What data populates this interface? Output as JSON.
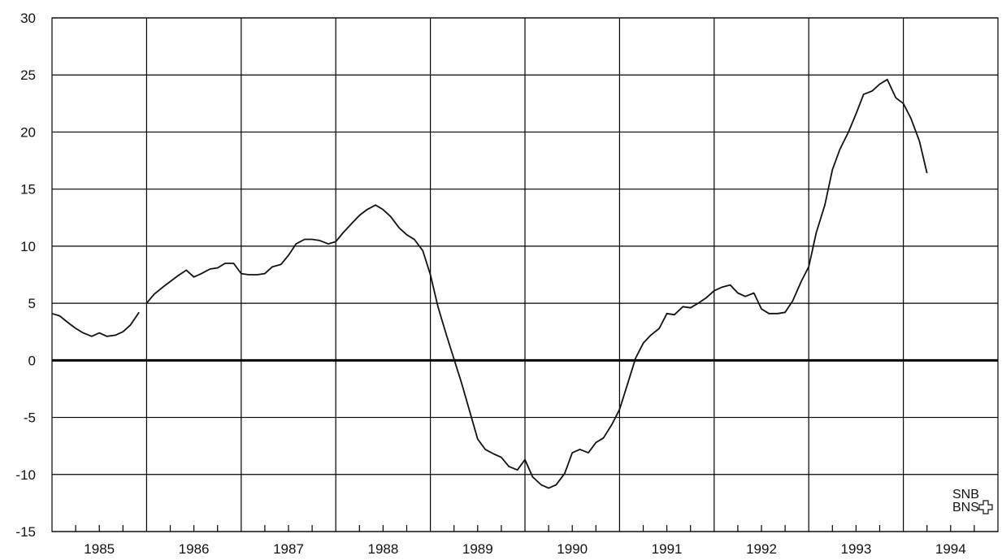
{
  "chart_data": {
    "type": "line",
    "title": "",
    "xlabel": "",
    "ylabel": "",
    "xlim": [
      1985,
      1995
    ],
    "ylim": [
      -15,
      30
    ],
    "y_ticks": [
      30,
      25,
      20,
      15,
      10,
      5,
      0,
      -5,
      -10,
      -15
    ],
    "x_tick_labels": [
      "1985",
      "1986",
      "1987",
      "1988",
      "1989",
      "1990",
      "1991",
      "1992",
      "1993",
      "1994"
    ],
    "grid": true,
    "legend": "none",
    "line_color": "#111111",
    "logo": {
      "top": "SNB",
      "bottom": "BNS"
    },
    "series": [
      {
        "segments": [
          {
            "points": [
              [
                1985.0,
                4.1
              ],
              [
                1985.08,
                3.9
              ],
              [
                1985.17,
                3.3
              ],
              [
                1985.25,
                2.8
              ],
              [
                1985.33,
                2.4
              ],
              [
                1985.42,
                2.1
              ],
              [
                1985.5,
                2.4
              ],
              [
                1985.58,
                2.1
              ],
              [
                1985.67,
                2.2
              ],
              [
                1985.75,
                2.5
              ],
              [
                1985.83,
                3.1
              ],
              [
                1985.92,
                4.2
              ]
            ]
          },
          {
            "points": [
              [
                1986.0,
                5.0
              ],
              [
                1986.08,
                5.8
              ],
              [
                1986.17,
                6.4
              ],
              [
                1986.25,
                6.9
              ],
              [
                1986.33,
                7.4
              ],
              [
                1986.42,
                7.9
              ],
              [
                1986.5,
                7.3
              ],
              [
                1986.58,
                7.6
              ],
              [
                1986.67,
                8.0
              ],
              [
                1986.75,
                8.1
              ],
              [
                1986.83,
                8.5
              ],
              [
                1986.92,
                8.5
              ],
              [
                1987.0,
                7.6
              ],
              [
                1987.08,
                7.5
              ],
              [
                1987.17,
                7.5
              ],
              [
                1987.25,
                7.6
              ],
              [
                1987.33,
                8.2
              ],
              [
                1987.42,
                8.4
              ],
              [
                1987.5,
                9.2
              ],
              [
                1987.58,
                10.2
              ],
              [
                1987.67,
                10.6
              ],
              [
                1987.75,
                10.6
              ],
              [
                1987.83,
                10.5
              ],
              [
                1987.92,
                10.2
              ],
              [
                1988.0,
                10.4
              ],
              [
                1988.08,
                11.2
              ],
              [
                1988.17,
                12.0
              ],
              [
                1988.25,
                12.7
              ],
              [
                1988.33,
                13.2
              ],
              [
                1988.42,
                13.6
              ],
              [
                1988.5,
                13.2
              ],
              [
                1988.58,
                12.6
              ],
              [
                1988.67,
                11.6
              ],
              [
                1988.75,
                11.0
              ],
              [
                1988.83,
                10.6
              ],
              [
                1988.92,
                9.6
              ],
              [
                1989.0,
                7.5
              ],
              [
                1989.08,
                4.7
              ],
              [
                1989.17,
                2.2
              ],
              [
                1989.25,
                0.1
              ],
              [
                1989.33,
                -2.0
              ],
              [
                1989.42,
                -4.6
              ],
              [
                1989.5,
                -6.9
              ],
              [
                1989.58,
                -7.8
              ],
              [
                1989.67,
                -8.2
              ],
              [
                1989.75,
                -8.5
              ],
              [
                1989.83,
                -9.3
              ],
              [
                1989.92,
                -9.6
              ],
              [
                1990.0,
                -8.7
              ],
              [
                1990.08,
                -10.2
              ],
              [
                1990.17,
                -10.9
              ],
              [
                1990.25,
                -11.2
              ],
              [
                1990.33,
                -10.9
              ],
              [
                1990.42,
                -9.9
              ],
              [
                1990.5,
                -8.1
              ],
              [
                1990.58,
                -7.8
              ],
              [
                1990.67,
                -8.1
              ],
              [
                1990.75,
                -7.2
              ],
              [
                1990.83,
                -6.8
              ],
              [
                1990.92,
                -5.6
              ],
              [
                1991.0,
                -4.3
              ],
              [
                1991.08,
                -2.2
              ],
              [
                1991.17,
                0.2
              ],
              [
                1991.25,
                1.5
              ],
              [
                1991.33,
                2.2
              ],
              [
                1991.42,
                2.8
              ],
              [
                1991.5,
                4.1
              ],
              [
                1991.58,
                4.0
              ],
              [
                1991.67,
                4.7
              ],
              [
                1991.75,
                4.6
              ],
              [
                1991.83,
                5.0
              ],
              [
                1991.92,
                5.5
              ],
              [
                1992.0,
                6.1
              ],
              [
                1992.08,
                6.4
              ],
              [
                1992.17,
                6.6
              ],
              [
                1992.25,
                5.9
              ],
              [
                1992.33,
                5.6
              ],
              [
                1992.42,
                5.9
              ],
              [
                1992.5,
                4.5
              ],
              [
                1992.58,
                4.1
              ],
              [
                1992.67,
                4.1
              ],
              [
                1992.75,
                4.2
              ],
              [
                1992.83,
                5.2
              ],
              [
                1992.92,
                6.9
              ],
              [
                1993.0,
                8.2
              ],
              [
                1993.08,
                11.2
              ],
              [
                1993.17,
                13.6
              ],
              [
                1993.25,
                16.7
              ],
              [
                1993.33,
                18.5
              ],
              [
                1993.42,
                20.0
              ],
              [
                1993.5,
                21.6
              ],
              [
                1993.58,
                23.3
              ],
              [
                1993.67,
                23.6
              ],
              [
                1993.75,
                24.2
              ],
              [
                1993.83,
                24.6
              ],
              [
                1993.92,
                23.0
              ],
              [
                1994.0,
                22.5
              ],
              [
                1994.08,
                21.2
              ],
              [
                1994.17,
                19.2
              ],
              [
                1994.25,
                16.4
              ]
            ]
          }
        ]
      }
    ]
  }
}
